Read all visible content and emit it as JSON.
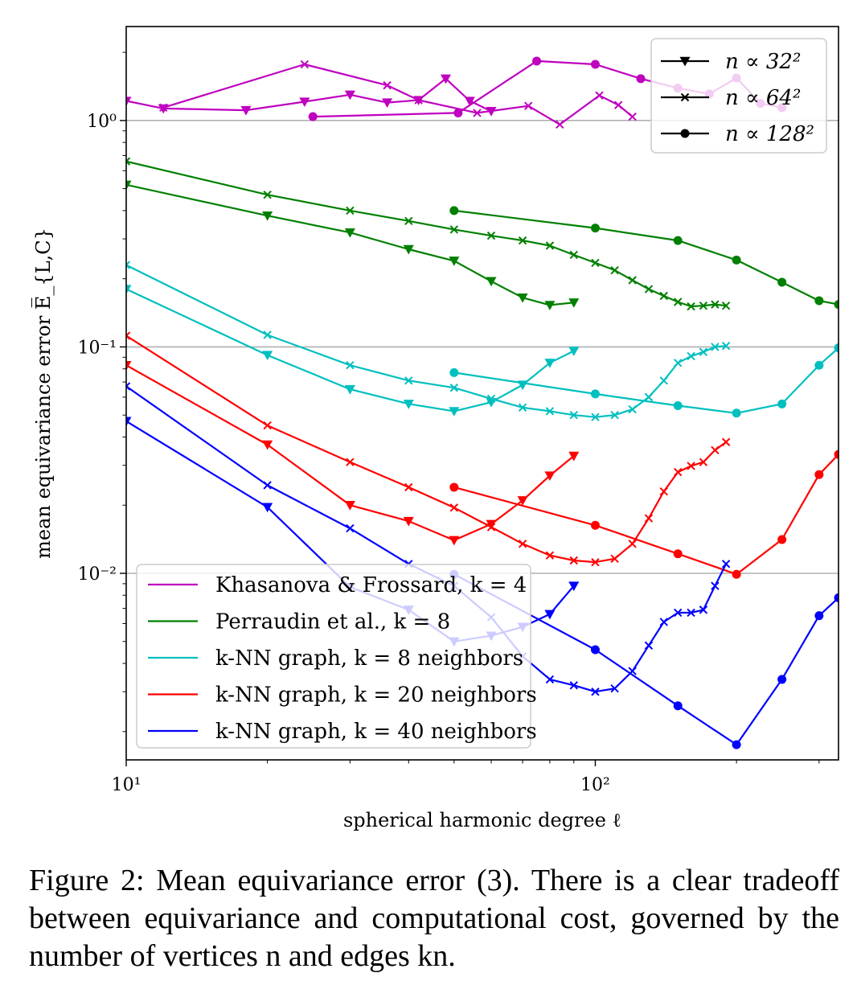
{
  "chart_data": {
    "type": "line",
    "xlabel": "spherical harmonic degree ℓ",
    "ylabel": "mean equivariance error E̅_{L,C}",
    "x_scale": "log",
    "y_scale": "log",
    "xlim": [
      10,
      330
    ],
    "ylim": [
      0.0015,
      2.6
    ],
    "x_ticks": [
      {
        "value": 10,
        "label": "10¹"
      },
      {
        "value": 100,
        "label": "10²"
      }
    ],
    "y_ticks": [
      {
        "value": 1,
        "label": "10⁰"
      },
      {
        "value": 0.1,
        "label": "10⁻¹"
      },
      {
        "value": 0.01,
        "label": "10⁻²"
      }
    ],
    "grid": "horizontal at major y ticks",
    "marker_legend": {
      "position": "top-right",
      "entries": [
        {
          "marker": "triangle-down",
          "label": "n ∝ 32²"
        },
        {
          "marker": "x",
          "label": "n ∝ 64²"
        },
        {
          "marker": "circle",
          "label": "n ∝ 128²"
        }
      ]
    },
    "color_legend": {
      "position": "lower-left",
      "entries": [
        {
          "key": "khasanova",
          "color": "#bf00bf",
          "label": "Khasanova & Frossard, k = 4"
        },
        {
          "key": "perraudin",
          "color": "#008000",
          "label": "Perraudin et al., k = 8"
        },
        {
          "key": "knn8",
          "color": "#00bfbf",
          "label": "k-NN graph, k = 8 neighbors"
        },
        {
          "key": "knn20",
          "color": "#ff0000",
          "label": "k-NN graph, k = 20 neighbors"
        },
        {
          "key": "knn40",
          "color": "#0000ff",
          "label": "k-NN graph, k = 40 neighbors"
        }
      ]
    },
    "series": [
      {
        "group": "khasanova",
        "marker": "x",
        "color": "#bf00bf",
        "x": [
          12,
          24,
          36,
          42,
          56,
          72,
          84,
          102,
          112,
          120
        ],
        "y": [
          1.14,
          1.77,
          1.43,
          1.23,
          1.08,
          1.16,
          0.96,
          1.29,
          1.17,
          1.04
        ]
      },
      {
        "group": "khasanova",
        "marker": "triangle-down",
        "color": "#bf00bf",
        "x": [
          10,
          12,
          18,
          24,
          30,
          36,
          42,
          48,
          54,
          60
        ],
        "y": [
          1.22,
          1.13,
          1.11,
          1.21,
          1.3,
          1.2,
          1.23,
          1.53,
          1.22,
          1.1
        ]
      },
      {
        "group": "khasanova",
        "marker": "circle",
        "color": "#bf00bf",
        "x": [
          25,
          51,
          75,
          100,
          125,
          150,
          175,
          200,
          225,
          250
        ],
        "y": [
          1.04,
          1.08,
          1.83,
          1.77,
          1.53,
          1.39,
          1.31,
          1.54,
          1.19,
          1.14
        ]
      },
      {
        "group": "perraudin",
        "marker": "x",
        "color": "#008000",
        "x": [
          10,
          20,
          30,
          40,
          50,
          60,
          70,
          80,
          90,
          100,
          110,
          120,
          130,
          140,
          150,
          160,
          170,
          180,
          190
        ],
        "y": [
          0.66,
          0.47,
          0.4,
          0.36,
          0.33,
          0.31,
          0.295,
          0.28,
          0.255,
          0.235,
          0.218,
          0.197,
          0.18,
          0.168,
          0.158,
          0.151,
          0.152,
          0.154,
          0.152
        ]
      },
      {
        "group": "perraudin",
        "marker": "triangle-down",
        "color": "#008000",
        "x": [
          10,
          20,
          30,
          40,
          50,
          60,
          70,
          80,
          90
        ],
        "y": [
          0.52,
          0.38,
          0.32,
          0.27,
          0.24,
          0.195,
          0.165,
          0.153,
          0.157
        ]
      },
      {
        "group": "perraudin",
        "marker": "circle",
        "color": "#008000",
        "x": [
          50,
          100,
          150,
          200,
          250,
          300,
          330
        ],
        "y": [
          0.4,
          0.335,
          0.295,
          0.242,
          0.193,
          0.16,
          0.154
        ]
      },
      {
        "group": "knn8",
        "marker": "x",
        "color": "#00bfbf",
        "x": [
          10,
          20,
          30,
          40,
          50,
          60,
          70,
          80,
          90,
          100,
          110,
          120,
          130,
          140,
          150,
          160,
          170,
          180,
          190
        ],
        "y": [
          0.23,
          0.113,
          0.083,
          0.071,
          0.066,
          0.059,
          0.054,
          0.052,
          0.05,
          0.049,
          0.05,
          0.053,
          0.06,
          0.071,
          0.085,
          0.091,
          0.095,
          0.1,
          0.101
        ]
      },
      {
        "group": "knn8",
        "marker": "triangle-down",
        "color": "#00bfbf",
        "x": [
          10,
          20,
          30,
          40,
          50,
          60,
          70,
          80,
          90
        ],
        "y": [
          0.18,
          0.092,
          0.065,
          0.056,
          0.052,
          0.057,
          0.068,
          0.085,
          0.096
        ]
      },
      {
        "group": "knn8",
        "marker": "circle",
        "color": "#00bfbf",
        "x": [
          50,
          100,
          150,
          200,
          250,
          300,
          330
        ],
        "y": [
          0.077,
          0.062,
          0.055,
          0.051,
          0.056,
          0.083,
          0.099
        ]
      },
      {
        "group": "knn20",
        "marker": "x",
        "color": "#ff0000",
        "x": [
          10,
          20,
          30,
          40,
          50,
          60,
          70,
          80,
          90,
          100,
          110,
          120,
          130,
          140,
          150,
          160,
          170,
          180,
          190
        ],
        "y": [
          0.112,
          0.045,
          0.031,
          0.024,
          0.0195,
          0.016,
          0.0135,
          0.012,
          0.0114,
          0.0112,
          0.0116,
          0.0135,
          0.0175,
          0.023,
          0.028,
          0.0298,
          0.031,
          0.035,
          0.038
        ]
      },
      {
        "group": "knn20",
        "marker": "triangle-down",
        "color": "#ff0000",
        "x": [
          10,
          20,
          30,
          40,
          50,
          60,
          70,
          80,
          90
        ],
        "y": [
          0.083,
          0.037,
          0.02,
          0.017,
          0.014,
          0.0165,
          0.021,
          0.027,
          0.033
        ]
      },
      {
        "group": "knn20",
        "marker": "circle",
        "color": "#ff0000",
        "x": [
          50,
          100,
          150,
          200,
          250,
          300,
          330
        ],
        "y": [
          0.024,
          0.0163,
          0.0122,
          0.0099,
          0.0141,
          0.0273,
          0.0335
        ]
      },
      {
        "group": "knn40",
        "marker": "x",
        "color": "#0000ff",
        "x": [
          10,
          20,
          30,
          40,
          50,
          60,
          70,
          80,
          90,
          100,
          110,
          120,
          130,
          140,
          150,
          160,
          170,
          180,
          190
        ],
        "y": [
          0.067,
          0.0245,
          0.0158,
          0.011,
          0.0088,
          0.0064,
          0.0043,
          0.0034,
          0.0032,
          0.003,
          0.0031,
          0.0037,
          0.0048,
          0.0061,
          0.0067,
          0.0067,
          0.0069,
          0.0088,
          0.011
        ]
      },
      {
        "group": "knn40",
        "marker": "triangle-down",
        "color": "#0000ff",
        "x": [
          10,
          20,
          30,
          40,
          50,
          60,
          70,
          80,
          90
        ],
        "y": [
          0.047,
          0.0196,
          0.0087,
          0.0069,
          0.005,
          0.0053,
          0.0058,
          0.0066,
          0.0088
        ]
      },
      {
        "group": "knn40",
        "marker": "circle",
        "color": "#0000ff",
        "x": [
          50,
          100,
          150,
          200,
          250,
          300,
          330
        ],
        "y": [
          0.0099,
          0.0046,
          0.0026,
          0.00175,
          0.0034,
          0.0065,
          0.0078
        ]
      }
    ]
  },
  "caption": "Figure 2: Mean equivariance error (3). There is a clear tradeoff between equivariance and computational cost, governed by the number of vertices n and edges kn."
}
